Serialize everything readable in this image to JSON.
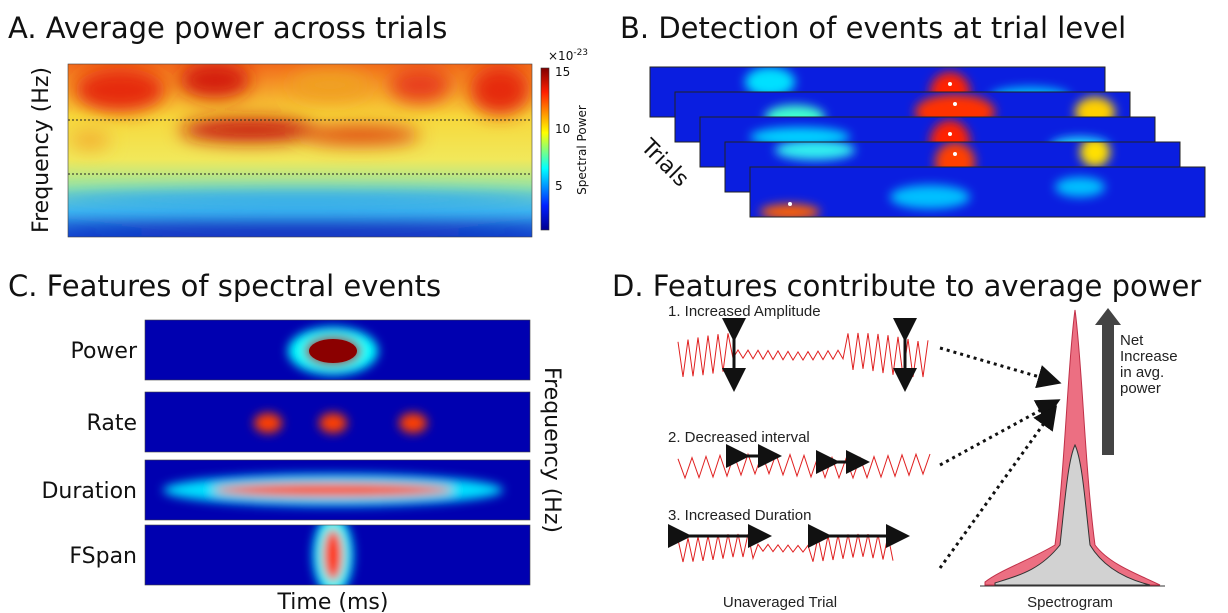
{
  "panels": [
    {
      "title": "A. Average power across trials",
      "y_label": "Frequency (Hz)",
      "colorbar": {
        "label": "Spectral Power",
        "exponent": "×10",
        "exponent_power": "-23",
        "ticks": [
          15,
          10,
          5
        ]
      }
    },
    {
      "title": "B. Detection of events at trial level",
      "annotation": "Trials"
    },
    {
      "title": "C. Features of spectral events",
      "rows": [
        "Power",
        "Rate",
        "Duration",
        "FSpan"
      ],
      "x_label": "Time (ms)",
      "y_label": "Frequency (Hz)"
    },
    {
      "title": "D. Features contribute to average power",
      "items": [
        "1. Increased Amplitude",
        "2. Decreased interval",
        "3. Increased Duration"
      ],
      "arrow_label": [
        "Net",
        "Increase",
        "in avg.",
        "power"
      ],
      "captions": [
        "Unaveraged Trial",
        "Spectrogram"
      ]
    }
  ]
}
